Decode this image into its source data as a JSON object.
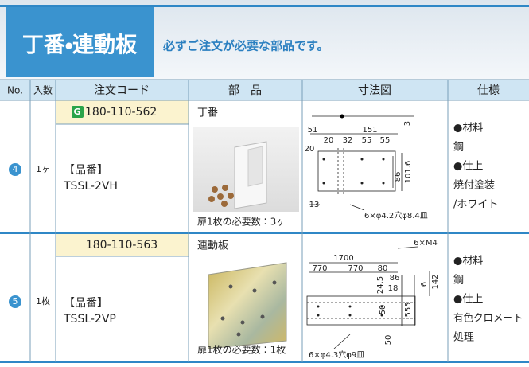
{
  "header": {
    "title": "丁番・連動板",
    "subtitle": "必ずご注文が必要な部品です。"
  },
  "table": {
    "columns": [
      "No.",
      "入数",
      "注文コード",
      "部　品",
      "寸法図",
      "仕様"
    ],
    "rows": [
      {
        "no": "4",
        "quantity": "1ヶ",
        "code": "180-110-562",
        "part_label": "【品番】",
        "part_number": "TSSL-2VH",
        "part_name": "丁番",
        "required": "扉1枚の必要数：3ヶ",
        "dimensions": [
          "3",
          "51",
          "151",
          "20",
          "32",
          "55",
          "55",
          "20",
          "86",
          "101.6",
          "13",
          "6×φ4.2穴φ8.4皿"
        ],
        "specs": [
          "●材料",
          "鋼",
          "●仕上",
          "焼付塗装",
          "/ホワイト"
        ]
      },
      {
        "no": "5",
        "quantity": "1枚",
        "code": "180-110-563",
        "part_label": "【品番】",
        "part_number": "TSSL-2VP",
        "part_name": "連動板",
        "required": "扉1枚の必要数：1枚",
        "dimensions": [
          "6×M4",
          "1700",
          "770",
          "770",
          "80",
          "86",
          "18",
          "24.5",
          "6",
          "142",
          "50",
          "555",
          "50",
          "6×φ4.3穴φ9皿"
        ],
        "specs": [
          "●材料",
          "鋼",
          "●仕上",
          "有色クロメート",
          "処理"
        ]
      }
    ]
  }
}
